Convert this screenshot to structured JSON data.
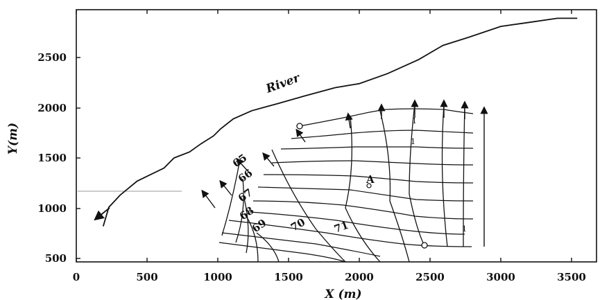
{
  "figure": {
    "x_axis": {
      "label": "X (m)",
      "range": [
        0,
        3700
      ],
      "ticks": [
        0,
        500,
        1000,
        1500,
        2000,
        2500,
        3000,
        3500
      ]
    },
    "y_axis": {
      "label": "Y(m)",
      "range": [
        430,
        2960
      ],
      "ticks": [
        500,
        1000,
        1500,
        2000,
        2500
      ]
    },
    "river": {
      "label": "River",
      "path": [
        [
          190,
          820
        ],
        [
          230,
          1010
        ],
        [
          310,
          1130
        ],
        [
          430,
          1270
        ],
        [
          620,
          1400
        ],
        [
          690,
          1500
        ],
        [
          800,
          1560
        ],
        [
          880,
          1640
        ],
        [
          970,
          1720
        ],
        [
          1020,
          1790
        ],
        [
          1110,
          1890
        ],
        [
          1240,
          1970
        ],
        [
          1420,
          2040
        ],
        [
          1620,
          2120
        ],
        [
          1830,
          2200
        ],
        [
          2000,
          2240
        ],
        [
          2200,
          2340
        ],
        [
          2420,
          2480
        ],
        [
          2590,
          2620
        ],
        [
          2770,
          2700
        ],
        [
          3000,
          2810
        ],
        [
          3200,
          2850
        ],
        [
          3400,
          2890
        ],
        [
          3540,
          2890
        ]
      ]
    },
    "contour_labels": [
      "65",
      "66",
      "67",
      "68",
      "69",
      "70",
      "71"
    ],
    "point_label": "A",
    "marker_labels": [
      "1",
      "1",
      "1"
    ],
    "colors": {
      "ink": "#111111",
      "background": "#ffffff",
      "boundary": "#999999"
    }
  }
}
